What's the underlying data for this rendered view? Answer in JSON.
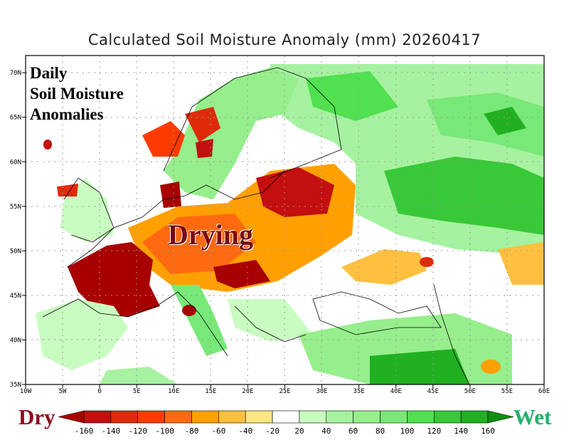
{
  "title": "Calculated Soil Moisture Anomaly (mm) 20260417",
  "overlay_label": {
    "line1": "Daily",
    "line2": "Soil Moisture",
    "line3": "Anomalies"
  },
  "annotation": "Drying",
  "legend": {
    "dry_label": "Dry",
    "wet_label": "Wet",
    "ticks": [
      "-160",
      "-140",
      "-120",
      "-100",
      "-80",
      "-60",
      "-40",
      "-20",
      "20",
      "40",
      "60",
      "80",
      "100",
      "120",
      "140",
      "160"
    ],
    "colors": [
      "#a80000",
      "#c30f0f",
      "#de2a0a",
      "#ff3a00",
      "#ff6a10",
      "#ffa000",
      "#ffc040",
      "#ffe680",
      "#ffffff",
      "#c8fcc0",
      "#a6f2a0",
      "#96ee8c",
      "#78e878",
      "#50e050",
      "#38c838",
      "#20b020",
      "#109010"
    ]
  },
  "axes": {
    "lon_labels": [
      "10W",
      "5W",
      "0",
      "5E",
      "10E",
      "15E",
      "20E",
      "25E",
      "30E",
      "35E",
      "40E",
      "45E",
      "50E",
      "55E",
      "60E"
    ],
    "lat_labels": [
      "35N",
      "40N",
      "45N",
      "50N",
      "55N",
      "60N",
      "65N",
      "70N"
    ]
  }
}
